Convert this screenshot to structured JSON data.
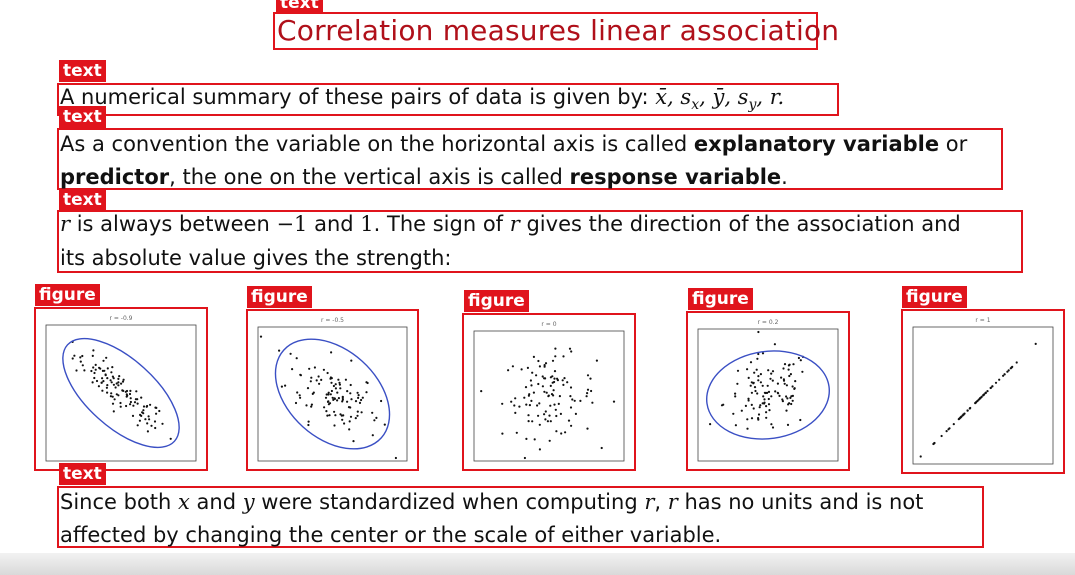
{
  "labels": {
    "text": "text",
    "figure": "figure"
  },
  "title": "Correlation measures linear association",
  "para1": {
    "lead": "A numerical summary of these pairs of data is given by: ",
    "math": "x̄, s",
    "sub_x": "x",
    "mid": ", ȳ, s",
    "sub_y": "y",
    "tail": ", r."
  },
  "para2": {
    "line1_a": "As a convention the variable on the horizontal axis is called ",
    "line1_b": "explanatory variable",
    "line1_c": " or",
    "line2_a": "predictor",
    "line2_b": ", the one on the vertical axis is called ",
    "line2_c": "response variable",
    "line2_d": "."
  },
  "para3": {
    "r": "r",
    "a": " is always between ",
    "neg1": "−1",
    "b": " and ",
    "one": "1",
    "c": ". The sign of ",
    "r2": "r",
    "d": " gives the direction of the association and",
    "line2": "its absolute value gives the strength:"
  },
  "para4": {
    "a": "Since both ",
    "x": "x",
    "b": " and ",
    "y": "y",
    "c": " were standardized when computing ",
    "r1": "r",
    "d": ", ",
    "r2": "r",
    "e": " has no units and is not",
    "line2": "affected by changing the center or the scale of either variable."
  },
  "figures": [
    {
      "caption": "r = -0.9",
      "r": -0.9,
      "ellipse": true
    },
    {
      "caption": "r = -0.5",
      "r": -0.5,
      "ellipse": true
    },
    {
      "caption": "r = 0",
      "r": 0,
      "ellipse": false
    },
    {
      "caption": "r = 0.2",
      "r": 0.2,
      "ellipse": true
    },
    {
      "caption": "r = 1",
      "r": 1,
      "ellipse": false
    }
  ],
  "colors": {
    "annotation_red": "#e0141c",
    "title_red": "#b0101a",
    "ink_blue": "#3a4fc4"
  }
}
